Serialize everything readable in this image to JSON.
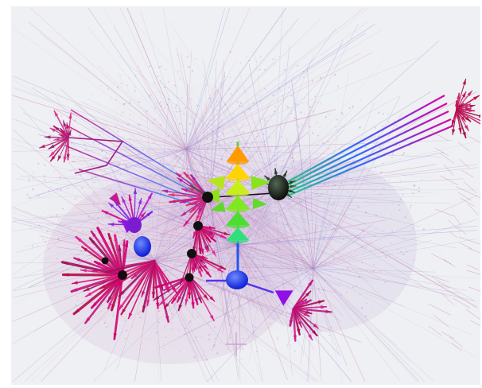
{
  "image": {
    "subject": "network-graph",
    "colors": {
      "background": "#eef0f3",
      "core_top": "#ff9900",
      "core_mid": "#ffee00",
      "core_green": "#44dd22",
      "core_bottom": "#22ee88",
      "blue_hub": "#2233ff",
      "violet": "#8800ee",
      "magenta": "#dd0088",
      "crimson": "#b0103c",
      "dark_node": "#111111"
    }
  }
}
